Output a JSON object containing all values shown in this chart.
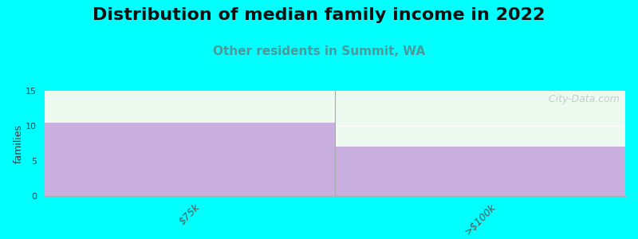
{
  "title": "Distribution of median family income in 2022",
  "subtitle": "Other residents in Summit, WA",
  "categories": [
    "$75k",
    ">$100k"
  ],
  "values": [
    10.5,
    7.0
  ],
  "bar_color": "#c9aee0",
  "background_color": "#00ffff",
  "plot_bg_color": "#edfaef",
  "ylabel": "families",
  "ylim": [
    0,
    15
  ],
  "yticks": [
    0,
    5,
    10,
    15
  ],
  "title_fontsize": 16,
  "subtitle_fontsize": 11,
  "subtitle_color": "#4a9a9a",
  "watermark": "  City-Data.com",
  "ylabel_fontsize": 9
}
